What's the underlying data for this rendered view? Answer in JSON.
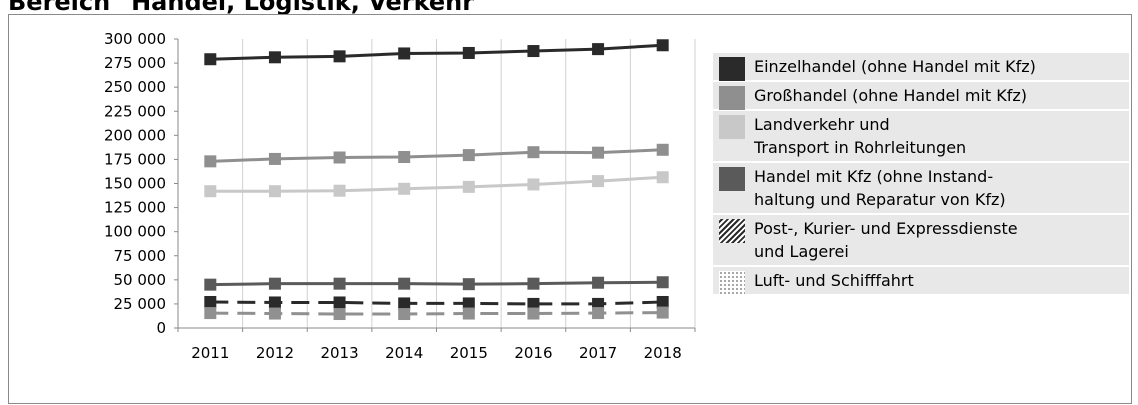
{
  "heading": "Bereich \"Handel, Logistik, Verkehr\"",
  "chart_data": {
    "type": "line",
    "title": "",
    "xlabel": "",
    "ylabel": "",
    "x": [
      "2011",
      "2012",
      "2013",
      "2014",
      "2015",
      "2016",
      "2017",
      "2018"
    ],
    "ylim": [
      0,
      300000
    ],
    "y_ticks": [
      {
        "value": 0,
        "label": "0"
      },
      {
        "value": 25000,
        "label": "25 000"
      },
      {
        "value": 50000,
        "label": "50 000"
      },
      {
        "value": 75000,
        "label": "75 000"
      },
      {
        "value": 100000,
        "label": "100 000"
      },
      {
        "value": 125000,
        "label": "125 000"
      },
      {
        "value": 150000,
        "label": "150 000"
      },
      {
        "value": 175000,
        "label": "175 000"
      },
      {
        "value": 200000,
        "label": "200 000"
      },
      {
        "value": 225000,
        "label": "225 000"
      },
      {
        "value": 250000,
        "label": "250 000"
      },
      {
        "value": 275000,
        "label": "275 000"
      },
      {
        "value": 300000,
        "label": "300 000"
      }
    ],
    "grid": "vertical",
    "legend_position": "right",
    "series": [
      {
        "name": "Einzelhandel (ohne Handel mit Kfz)",
        "label_lines": [
          "Einzelhandel (ohne Handel mit Kfz)"
        ],
        "color": "#2a2a2a",
        "swatch": "solid",
        "line": "solid",
        "values": [
          279000,
          281000,
          282000,
          285000,
          285500,
          287500,
          289500,
          293500
        ]
      },
      {
        "name": "Großhandel (ohne Handel mit Kfz)",
        "label_lines": [
          "Großhandel (ohne Handel mit Kfz)"
        ],
        "color": "#8f8f8f",
        "swatch": "solid",
        "line": "solid",
        "values": [
          173000,
          175500,
          177000,
          177500,
          179500,
          182500,
          182000,
          185000
        ]
      },
      {
        "name": "Landverkehr und Transport in Rohrleitungen",
        "label_lines": [
          "Landverkehr und",
          "Transport in Rohrleitungen"
        ],
        "color": "#c8c8c8",
        "swatch": "solid",
        "line": "solid",
        "values": [
          142000,
          142000,
          142500,
          144500,
          146500,
          149000,
          152500,
          156500
        ]
      },
      {
        "name": "Handel mit Kfz (ohne Instandhaltung und Reparatur von Kfz)",
        "label_lines": [
          "Handel mit Kfz (ohne Instand-",
          "haltung und Reparatur von Kfz)"
        ],
        "color": "#5a5a5a",
        "swatch": "solid",
        "line": "solid",
        "values": [
          45000,
          46000,
          46000,
          46000,
          45500,
          46000,
          47000,
          47500
        ]
      },
      {
        "name": "Post-, Kurier- und Expressdienste und Lagerei",
        "label_lines": [
          "Post-, Kurier- und Expressdienste",
          "und Lagerei"
        ],
        "color": "#2a2a2a",
        "swatch": "hatch",
        "line": "dashed",
        "values": [
          27000,
          26500,
          26500,
          25500,
          25500,
          25000,
          25000,
          27000
        ]
      },
      {
        "name": "Luft- und Schifffahrt",
        "label_lines": [
          "Luft- und Schifffahrt"
        ],
        "color": "#909090",
        "swatch": "dots",
        "line": "dashed",
        "values": [
          15500,
          15000,
          14500,
          14500,
          15000,
          15000,
          15500,
          16000
        ]
      }
    ]
  }
}
